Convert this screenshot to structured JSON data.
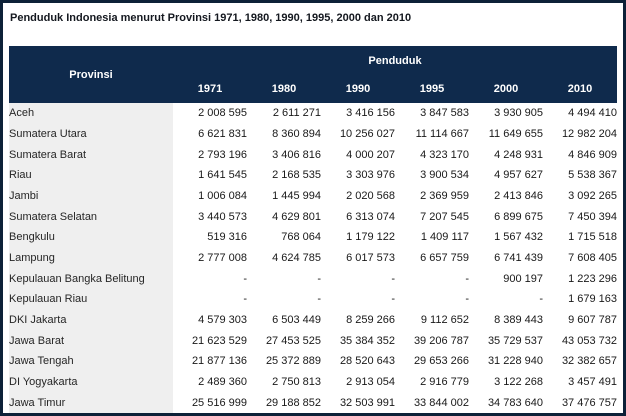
{
  "title": "Penduduk Indonesia menurut Provinsi 1971, 1980, 1990, 1995, 2000 dan 2010",
  "colors": {
    "header_bg": "#0f2a4c",
    "page_border": "#0d2138",
    "row_label_bg": "#efefef",
    "header_text": "#ffffff"
  },
  "table": {
    "provinsi_header": "Provinsi",
    "group_header": "Penduduk",
    "years": [
      "1971",
      "1980",
      "1990",
      "1995",
      "2000",
      "2010"
    ],
    "rows": [
      {
        "provinsi": "Aceh",
        "values": [
          "2 008 595",
          "2 611 271",
          "3 416 156",
          "3 847 583",
          "3 930 905",
          "4 494 410"
        ]
      },
      {
        "provinsi": "Sumatera Utara",
        "values": [
          "6 621 831",
          "8 360 894",
          "10 256 027",
          "11 114 667",
          "11 649 655",
          "12 982 204"
        ]
      },
      {
        "provinsi": "Sumatera Barat",
        "values": [
          "2 793 196",
          "3 406 816",
          "4 000 207",
          "4 323 170",
          "4 248 931",
          "4 846 909"
        ]
      },
      {
        "provinsi": "Riau",
        "values": [
          "1 641 545",
          "2 168 535",
          "3 303 976",
          "3 900 534",
          "4 957 627",
          "5 538 367"
        ]
      },
      {
        "provinsi": "Jambi",
        "values": [
          "1 006 084",
          "1 445 994",
          "2 020 568",
          "2 369 959",
          "2 413 846",
          "3 092 265"
        ]
      },
      {
        "provinsi": "Sumatera Selatan",
        "values": [
          "3 440 573",
          "4 629 801",
          "6 313 074",
          "7 207 545",
          "6 899 675",
          "7 450 394"
        ]
      },
      {
        "provinsi": "Bengkulu",
        "values": [
          "519 316",
          "768 064",
          "1 179 122",
          "1 409 117",
          "1 567 432",
          "1 715 518"
        ]
      },
      {
        "provinsi": "Lampung",
        "values": [
          "2 777 008",
          "4 624 785",
          "6 017 573",
          "6 657 759",
          "6 741 439",
          "7 608 405"
        ]
      },
      {
        "provinsi": "Kepulauan Bangka Belitung",
        "values": [
          "-",
          "-",
          "-",
          "-",
          "900 197",
          "1 223 296"
        ]
      },
      {
        "provinsi": "Kepulauan Riau",
        "values": [
          "-",
          "-",
          "-",
          "-",
          "-",
          "1 679 163"
        ]
      },
      {
        "provinsi": "DKI Jakarta",
        "values": [
          "4 579 303",
          "6 503 449",
          "8 259 266",
          "9 112 652",
          "8 389 443",
          "9 607 787"
        ]
      },
      {
        "provinsi": "Jawa Barat",
        "values": [
          "21 623 529",
          "27 453 525",
          "35 384 352",
          "39 206 787",
          "35 729 537",
          "43 053 732"
        ]
      },
      {
        "provinsi": "Jawa Tengah",
        "values": [
          "21 877 136",
          "25 372 889",
          "28 520 643",
          "29 653 266",
          "31 228 940",
          "32 382 657"
        ]
      },
      {
        "provinsi": "DI Yogyakarta",
        "values": [
          "2 489 360",
          "2 750 813",
          "2 913 054",
          "2 916 779",
          "3 122 268",
          "3 457 491"
        ]
      },
      {
        "provinsi": "Jawa Timur",
        "values": [
          "25 516 999",
          "29 188 852",
          "32 503 991",
          "33 844 002",
          "34 783 640",
          "37 476 757"
        ]
      }
    ]
  },
  "chart_data": {
    "type": "table",
    "title": "Penduduk Indonesia menurut Provinsi 1971, 1980, 1990, 1995, 2000 dan 2010",
    "categories": [
      1971,
      1980,
      1990,
      1995,
      2000,
      2010
    ],
    "value_group_label": "Penduduk",
    "row_label": "Provinsi",
    "series": [
      {
        "name": "Aceh",
        "values": [
          2008595,
          2611271,
          3416156,
          3847583,
          3930905,
          4494410
        ]
      },
      {
        "name": "Sumatera Utara",
        "values": [
          6621831,
          8360894,
          10256027,
          11114667,
          11649655,
          12982204
        ]
      },
      {
        "name": "Sumatera Barat",
        "values": [
          2793196,
          3406816,
          4000207,
          4323170,
          4248931,
          4846909
        ]
      },
      {
        "name": "Riau",
        "values": [
          1641545,
          2168535,
          3303976,
          3900534,
          4957627,
          5538367
        ]
      },
      {
        "name": "Jambi",
        "values": [
          1006084,
          1445994,
          2020568,
          2369959,
          2413846,
          3092265
        ]
      },
      {
        "name": "Sumatera Selatan",
        "values": [
          3440573,
          4629801,
          6313074,
          7207545,
          6899675,
          7450394
        ]
      },
      {
        "name": "Bengkulu",
        "values": [
          519316,
          768064,
          1179122,
          1409117,
          1567432,
          1715518
        ]
      },
      {
        "name": "Lampung",
        "values": [
          2777008,
          4624785,
          6017573,
          6657759,
          6741439,
          7608405
        ]
      },
      {
        "name": "Kepulauan Bangka Belitung",
        "values": [
          null,
          null,
          null,
          null,
          900197,
          1223296
        ]
      },
      {
        "name": "Kepulauan Riau",
        "values": [
          null,
          null,
          null,
          null,
          null,
          1679163
        ]
      },
      {
        "name": "DKI Jakarta",
        "values": [
          4579303,
          6503449,
          8259266,
          9112652,
          8389443,
          9607787
        ]
      },
      {
        "name": "Jawa Barat",
        "values": [
          21623529,
          27453525,
          35384352,
          39206787,
          35729537,
          43053732
        ]
      },
      {
        "name": "Jawa Tengah",
        "values": [
          21877136,
          25372889,
          28520643,
          29653266,
          31228940,
          32382657
        ]
      },
      {
        "name": "DI Yogyakarta",
        "values": [
          2489360,
          2750813,
          2913054,
          2916779,
          3122268,
          3457491
        ]
      },
      {
        "name": "Jawa Timur",
        "values": [
          25516999,
          29188852,
          32503991,
          33844002,
          34783640,
          37476757
        ]
      }
    ]
  }
}
